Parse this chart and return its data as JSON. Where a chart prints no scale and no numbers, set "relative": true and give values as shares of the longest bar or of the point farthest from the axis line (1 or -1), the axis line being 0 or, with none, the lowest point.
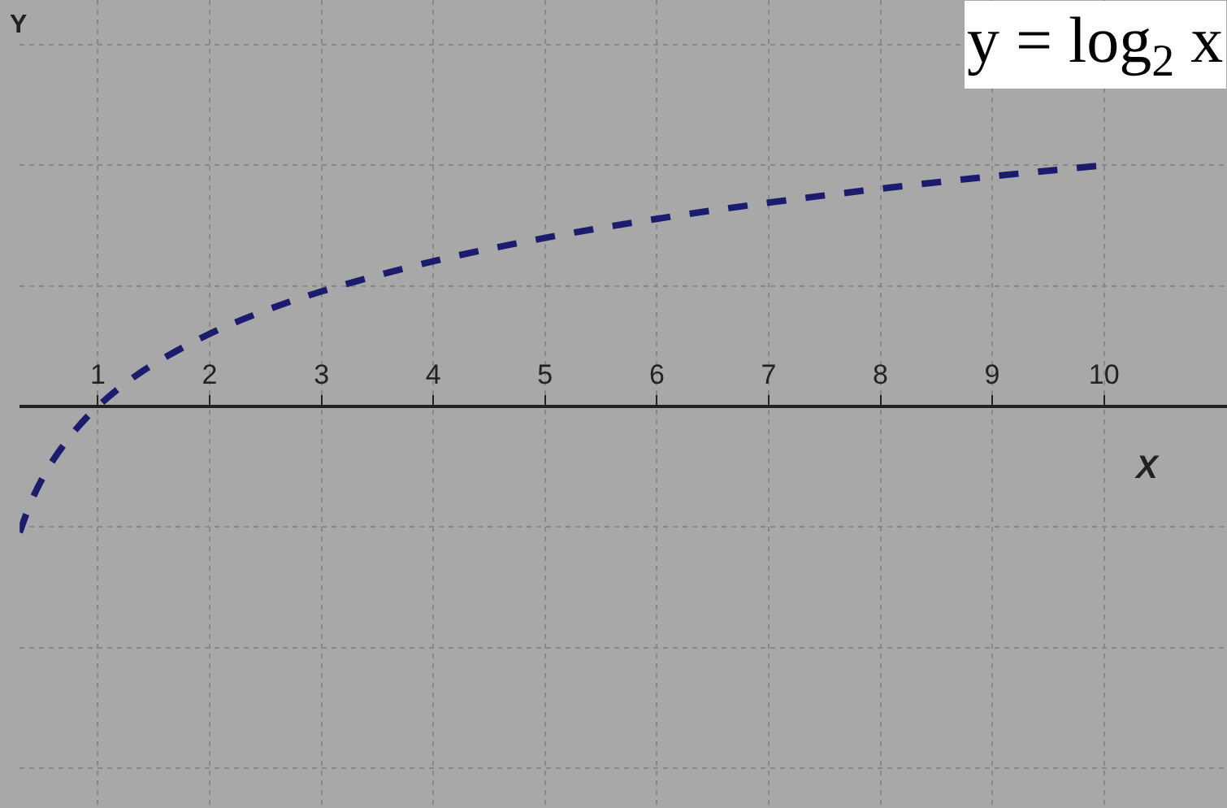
{
  "chart_data": {
    "type": "line",
    "title": "y = log$_{2}$ x",
    "xlabel": "X",
    "ylabel": "Y",
    "relative": true,
    "x": [
      0.3,
      0.4,
      0.5,
      0.6,
      0.8,
      1,
      1.25,
      1.5,
      2,
      2.5,
      3,
      4,
      5,
      6,
      7,
      8,
      9,
      10
    ],
    "series": [
      {
        "color": "#1c1c6e",
        "values": [
          -0.523,
          -0.398,
          -0.301,
          -0.222,
          -0.097,
          0,
          0.097,
          0.176,
          0.301,
          0.398,
          0.477,
          0.602,
          0.699,
          0.778,
          0.845,
          0.903,
          0.954,
          1
        ]
      }
    ],
    "xlim": [
      0.3,
      11.1
    ],
    "xticks": [
      1,
      2,
      3,
      4,
      5,
      6,
      7,
      8,
      9,
      10
    ],
    "grid": true,
    "tick_labels": "x",
    "line_style": "dashed",
    "marker": "none"
  }
}
